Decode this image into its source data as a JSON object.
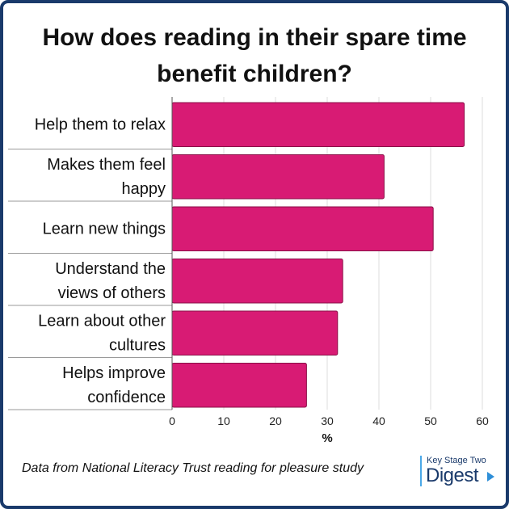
{
  "title_lines": [
    "How does reading in their spare time",
    "benefit children?"
  ],
  "footer": "Data from National Literacy Trust reading for pleasure study",
  "logo": {
    "top": "Key Stage Two",
    "main": "Digest"
  },
  "colors": {
    "bar": "#d81b74",
    "border": "#1a3a6b",
    "grid": "#dddddd",
    "separator": "#9a9a9a"
  },
  "chart_data": {
    "type": "bar",
    "orientation": "horizontal",
    "title": "How does reading in their spare time benefit children?",
    "categories": [
      [
        "Help them to relax"
      ],
      [
        "Makes them feel",
        "happy"
      ],
      [
        "Learn new things"
      ],
      [
        "Understand the",
        "views of others"
      ],
      [
        "Learn about other",
        "cultures"
      ],
      [
        "Helps improve",
        "confidence"
      ]
    ],
    "values": [
      56.5,
      41,
      50.5,
      33,
      32,
      26
    ],
    "xlabel": "%",
    "ylabel": "",
    "xlim": [
      0,
      60
    ],
    "xticks": [
      "0",
      "10",
      "20",
      "30",
      "40",
      "50",
      "60"
    ],
    "grid": "vertical",
    "legend": "none"
  }
}
